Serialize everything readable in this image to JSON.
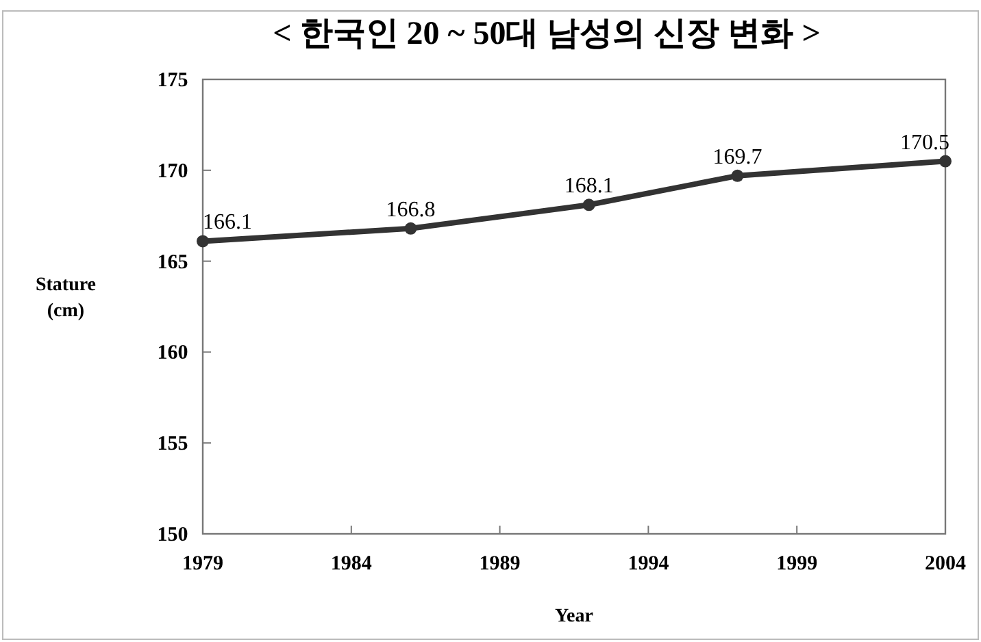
{
  "chart_data": {
    "type": "line",
    "title": "< 한국인 20 ~ 50대 남성의 신장 변화 >",
    "xlabel": "Year",
    "ylabel": "Stature (cm)",
    "x": [
      1979,
      1986,
      1992,
      1997,
      2004
    ],
    "series": [
      {
        "color": "#333333",
        "values": [
          166.1,
          166.8,
          168.1,
          169.7,
          170.5
        ]
      }
    ],
    "xlim": [
      1979,
      2004
    ],
    "xticks": [
      1979,
      1984,
      1989,
      1994,
      1999,
      2004
    ],
    "ylim": [
      150,
      175
    ],
    "yticks": [
      150,
      155,
      160,
      165,
      170,
      175
    ],
    "data_labels": true,
    "marker": "circle",
    "line_style": "solid",
    "grid": false
  }
}
